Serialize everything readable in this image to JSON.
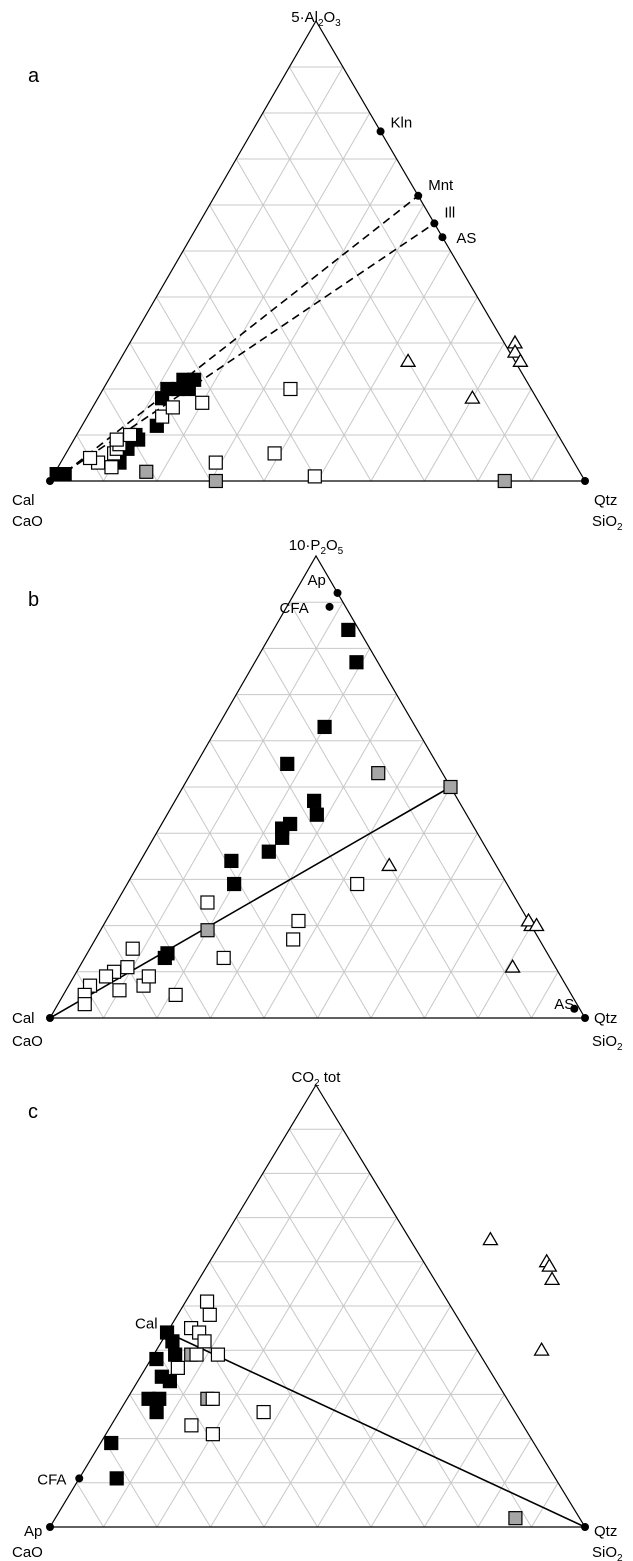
{
  "colors": {
    "filled": "#000000",
    "gray": "#a6a6a6",
    "open": "#ffffff",
    "grid": "#c8c8c8"
  },
  "chart_data": [
    {
      "type": "scatter",
      "subtype": "ternary",
      "panel_label": "a",
      "apex_top": {
        "main": "5·Al",
        "sub1": "2",
        "mid": "O",
        "sub2": "3",
        "tail": ""
      },
      "bottom_left": {
        "lines": [
          "Cal",
          "CaO"
        ]
      },
      "bottom_right": {
        "lines": [
          "Qtz",
          "SiO",
          "2"
        ]
      },
      "grid_divisions": 10,
      "reference_points": [
        {
          "label": "Kln",
          "top": 0.76,
          "right": 0.24
        },
        {
          "label": "Mnt",
          "top": 0.62,
          "right": 0.38
        },
        {
          "label": "Ill",
          "top": 0.56,
          "right": 0.44
        },
        {
          "label": "AS",
          "top": 0.53,
          "right": 0.47
        }
      ],
      "tie_lines": [
        {
          "style": "dashed",
          "from": {
            "top": 0.02,
            "right": 0.02
          },
          "to": {
            "top": 0.62,
            "right": 0.38
          }
        },
        {
          "style": "dashed",
          "from": {
            "top": 0.02,
            "right": 0.02
          },
          "to": {
            "top": 0.56,
            "right": 0.44
          }
        }
      ],
      "series": [
        {
          "marker": "filled-square",
          "points": [
            {
              "top": 0.015,
              "right": 0.005
            },
            {
              "top": 0.015,
              "right": 0.02
            },
            {
              "top": 0.04,
              "right": 0.11
            },
            {
              "top": 0.07,
              "right": 0.11
            },
            {
              "top": 0.1,
              "right": 0.11
            },
            {
              "top": 0.09,
              "right": 0.12
            },
            {
              "top": 0.12,
              "right": 0.14
            },
            {
              "top": 0.2,
              "right": 0.16
            },
            {
              "top": 0.2,
              "right": 0.14
            },
            {
              "top": 0.2,
              "right": 0.12
            },
            {
              "top": 0.22,
              "right": 0.14
            },
            {
              "top": 0.22,
              "right": 0.16
            },
            {
              "top": 0.18,
              "right": 0.12
            }
          ]
        },
        {
          "marker": "gray-square",
          "points": [
            {
              "top": 0.0,
              "right": 0.31
            },
            {
              "top": 0.0,
              "right": 0.85
            },
            {
              "top": 0.02,
              "right": 0.17
            }
          ]
        },
        {
          "marker": "open-square",
          "points": [
            {
              "top": 0.03,
              "right": 0.1
            },
            {
              "top": 0.04,
              "right": 0.07
            },
            {
              "top": 0.05,
              "right": 0.05
            },
            {
              "top": 0.06,
              "right": 0.09
            },
            {
              "top": 0.07,
              "right": 0.09
            },
            {
              "top": 0.08,
              "right": 0.09
            },
            {
              "top": 0.09,
              "right": 0.08
            },
            {
              "top": 0.1,
              "right": 0.1
            },
            {
              "top": 0.14,
              "right": 0.14
            },
            {
              "top": 0.16,
              "right": 0.15
            },
            {
              "top": 0.17,
              "right": 0.2
            },
            {
              "top": 0.04,
              "right": 0.29
            },
            {
              "top": 0.06,
              "right": 0.39
            },
            {
              "top": 0.01,
              "right": 0.49
            },
            {
              "top": 0.2,
              "right": 0.35
            }
          ]
        },
        {
          "marker": "open-triangle",
          "points": [
            {
              "top": 0.26,
              "right": 0.54
            },
            {
              "top": 0.18,
              "right": 0.7
            },
            {
              "top": 0.3,
              "right": 0.72
            },
            {
              "top": 0.28,
              "right": 0.73
            },
            {
              "top": 0.26,
              "right": 0.75
            }
          ]
        }
      ]
    },
    {
      "type": "scatter",
      "subtype": "ternary",
      "panel_label": "b",
      "apex_top": {
        "main": "10·P",
        "sub1": "2",
        "mid": "O",
        "sub2": "5",
        "tail": ""
      },
      "bottom_left": {
        "lines": [
          "Cal",
          "CaO"
        ]
      },
      "bottom_right": {
        "lines": [
          "Qtz",
          "SiO",
          "2"
        ]
      },
      "grid_divisions": 10,
      "reference_points": [
        {
          "label": "Ap",
          "top": 0.92,
          "right": 0.08
        },
        {
          "label": "CFA",
          "top": 0.89,
          "right": 0.08
        },
        {
          "label": "AS",
          "top": 0.02,
          "right": 0.97
        }
      ],
      "tie_lines": [
        {
          "style": "solid",
          "from": {
            "top": 0.0,
            "right": 0.0
          },
          "to": {
            "top": 0.5,
            "right": 0.5
          }
        }
      ],
      "series": [
        {
          "marker": "filled-square",
          "points": [
            {
              "top": 0.77,
              "right": 0.19
            },
            {
              "top": 0.84,
              "right": 0.14
            },
            {
              "top": 0.63,
              "right": 0.2
            },
            {
              "top": 0.55,
              "right": 0.17
            },
            {
              "top": 0.44,
              "right": 0.28
            },
            {
              "top": 0.47,
              "right": 0.26
            },
            {
              "top": 0.42,
              "right": 0.24
            },
            {
              "top": 0.41,
              "right": 0.23
            },
            {
              "top": 0.39,
              "right": 0.24
            },
            {
              "top": 0.36,
              "right": 0.23
            },
            {
              "top": 0.34,
              "right": 0.17
            },
            {
              "top": 0.29,
              "right": 0.2
            },
            {
              "top": 0.14,
              "right": 0.15
            },
            {
              "top": 0.13,
              "right": 0.15
            }
          ]
        },
        {
          "marker": "gray-square",
          "points": [
            {
              "top": 0.53,
              "right": 0.35
            },
            {
              "top": 0.5,
              "right": 0.5
            },
            {
              "top": 0.19,
              "right": 0.2
            }
          ]
        },
        {
          "marker": "open-square",
          "points": [
            {
              "top": 0.25,
              "right": 0.17
            },
            {
              "top": 0.15,
              "right": 0.08
            },
            {
              "top": 0.11,
              "right": 0.09
            },
            {
              "top": 0.1,
              "right": 0.07
            },
            {
              "top": 0.09,
              "right": 0.06
            },
            {
              "top": 0.07,
              "right": 0.04
            },
            {
              "top": 0.05,
              "right": 0.04
            },
            {
              "top": 0.03,
              "right": 0.05
            },
            {
              "top": 0.06,
              "right": 0.1
            },
            {
              "top": 0.07,
              "right": 0.14
            },
            {
              "top": 0.09,
              "right": 0.14
            },
            {
              "top": 0.05,
              "right": 0.21
            },
            {
              "top": 0.13,
              "right": 0.26
            },
            {
              "top": 0.17,
              "right": 0.37
            },
            {
              "top": 0.21,
              "right": 0.36
            },
            {
              "top": 0.29,
              "right": 0.43
            }
          ]
        },
        {
          "marker": "open-triangle",
          "points": [
            {
              "top": 0.33,
              "right": 0.47
            },
            {
              "top": 0.2,
              "right": 0.8
            },
            {
              "top": 0.21,
              "right": 0.79
            },
            {
              "top": 0.2,
              "right": 0.81
            },
            {
              "top": 0.11,
              "right": 0.81
            }
          ]
        }
      ]
    },
    {
      "type": "scatter",
      "subtype": "ternary",
      "panel_label": "c",
      "apex_top": {
        "main": "CO",
        "sub1": "2",
        "mid": " tot",
        "sub2": "",
        "tail": ""
      },
      "bottom_left": {
        "lines": [
          "Ap",
          "CaO"
        ]
      },
      "bottom_right": {
        "lines": [
          "Qtz",
          "SiO",
          "2"
        ]
      },
      "grid_divisions": 10,
      "reference_points": [
        {
          "label": "Cal",
          "top": 0.44,
          "right": 0.0
        },
        {
          "label": "CFA",
          "top": 0.11,
          "right": 0.0
        }
      ],
      "tie_lines": [
        {
          "style": "solid",
          "from": {
            "top": 0.44,
            "right": 0.0
          },
          "to": {
            "top": 0.0,
            "right": 1.0
          }
        }
      ],
      "series": [
        {
          "marker": "filled-square",
          "points": [
            {
              "top": 0.44,
              "right": 0.0
            },
            {
              "top": 0.42,
              "right": 0.02
            },
            {
              "top": 0.38,
              "right": 0.01
            },
            {
              "top": 0.39,
              "right": 0.04
            },
            {
              "top": 0.34,
              "right": 0.04
            },
            {
              "top": 0.33,
              "right": 0.06
            },
            {
              "top": 0.29,
              "right": 0.04
            },
            {
              "top": 0.29,
              "right": 0.06
            },
            {
              "top": 0.26,
              "right": 0.07
            },
            {
              "top": 0.19,
              "right": 0.02
            },
            {
              "top": 0.11,
              "right": 0.07
            }
          ]
        },
        {
          "marker": "gray-square",
          "points": [
            {
              "top": 0.39,
              "right": 0.07
            },
            {
              "top": 0.29,
              "right": 0.15
            },
            {
              "top": 0.02,
              "right": 0.86
            }
          ]
        },
        {
          "marker": "open-square",
          "points": [
            {
              "top": 0.51,
              "right": 0.04
            },
            {
              "top": 0.48,
              "right": 0.06
            },
            {
              "top": 0.45,
              "right": 0.04
            },
            {
              "top": 0.44,
              "right": 0.06
            },
            {
              "top": 0.42,
              "right": 0.08
            },
            {
              "top": 0.39,
              "right": 0.08
            },
            {
              "top": 0.39,
              "right": 0.12
            },
            {
              "top": 0.36,
              "right": 0.06
            },
            {
              "top": 0.29,
              "right": 0.16
            },
            {
              "top": 0.23,
              "right": 0.15
            },
            {
              "top": 0.21,
              "right": 0.2
            },
            {
              "top": 0.26,
              "right": 0.27
            }
          ]
        },
        {
          "marker": "open-triangle",
          "points": [
            {
              "top": 0.65,
              "right": 0.5
            },
            {
              "top": 0.6,
              "right": 0.63
            },
            {
              "top": 0.59,
              "right": 0.64
            },
            {
              "top": 0.56,
              "right": 0.66
            },
            {
              "top": 0.4,
              "right": 0.72
            }
          ]
        }
      ]
    }
  ]
}
